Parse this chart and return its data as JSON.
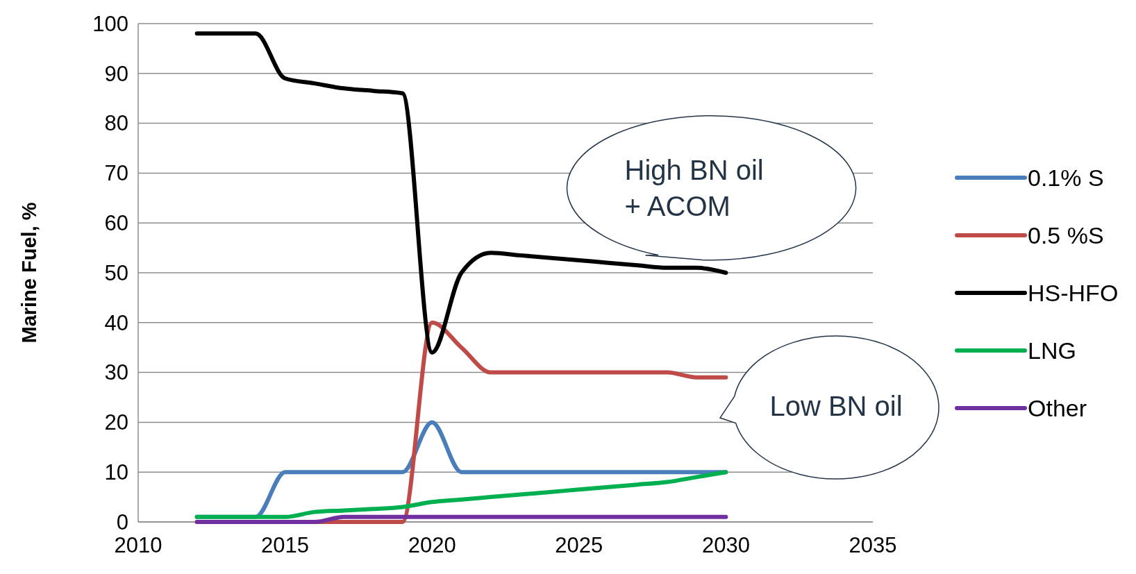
{
  "chart_data": {
    "type": "line",
    "ylabel": "Marine Fuel, %",
    "x": [
      2012,
      2013,
      2014,
      2015,
      2016,
      2017,
      2018,
      2019,
      2020,
      2021,
      2022,
      2023,
      2024,
      2025,
      2026,
      2027,
      2028,
      2029,
      2030
    ],
    "xlim": [
      2010,
      2035
    ],
    "xticks": [
      2010,
      2015,
      2020,
      2025,
      2030,
      2035
    ],
    "ylim": [
      0,
      100
    ],
    "yticks": [
      0,
      10,
      20,
      30,
      40,
      50,
      60,
      70,
      80,
      90,
      100
    ],
    "grid": "y",
    "legend": "right",
    "marker": "none",
    "line_style": "solid",
    "series": [
      {
        "name": "0.1% S",
        "color": "#4a7ebb",
        "values": [
          1,
          1,
          1,
          10,
          10,
          10,
          10,
          10,
          20,
          10,
          10,
          10,
          10,
          10,
          10,
          10,
          10,
          10,
          10
        ]
      },
      {
        "name": "0.5 %S",
        "color": "#be4b48",
        "values": [
          0,
          0,
          0,
          0,
          0,
          0,
          0,
          0,
          40,
          35,
          30,
          30,
          30,
          30,
          30,
          30,
          30,
          29,
          29
        ]
      },
      {
        "name": "HS-HFO",
        "color": "#000000",
        "values": [
          98,
          98,
          98,
          89,
          88,
          87,
          86.5,
          86,
          34,
          50,
          54,
          53.5,
          53,
          52.5,
          52,
          51.5,
          51,
          51,
          50
        ]
      },
      {
        "name": "LNG",
        "color": "#00b050",
        "values": [
          1,
          1,
          1,
          1,
          2,
          2.3,
          2.6,
          3,
          4,
          4.5,
          5,
          5.5,
          6,
          6.5,
          7,
          7.5,
          8,
          9,
          10
        ]
      },
      {
        "name": "Other",
        "color": "#7030a0",
        "values": [
          0,
          0,
          0,
          0,
          0,
          1,
          1,
          1,
          1,
          1,
          1,
          1,
          1,
          1,
          1,
          1,
          1,
          1,
          1
        ]
      }
    ],
    "annotations": [
      {
        "text": "High BN oil\n+ ACOM",
        "x": 2027.5,
        "y": 51
      },
      "Low BN oil"
    ]
  }
}
